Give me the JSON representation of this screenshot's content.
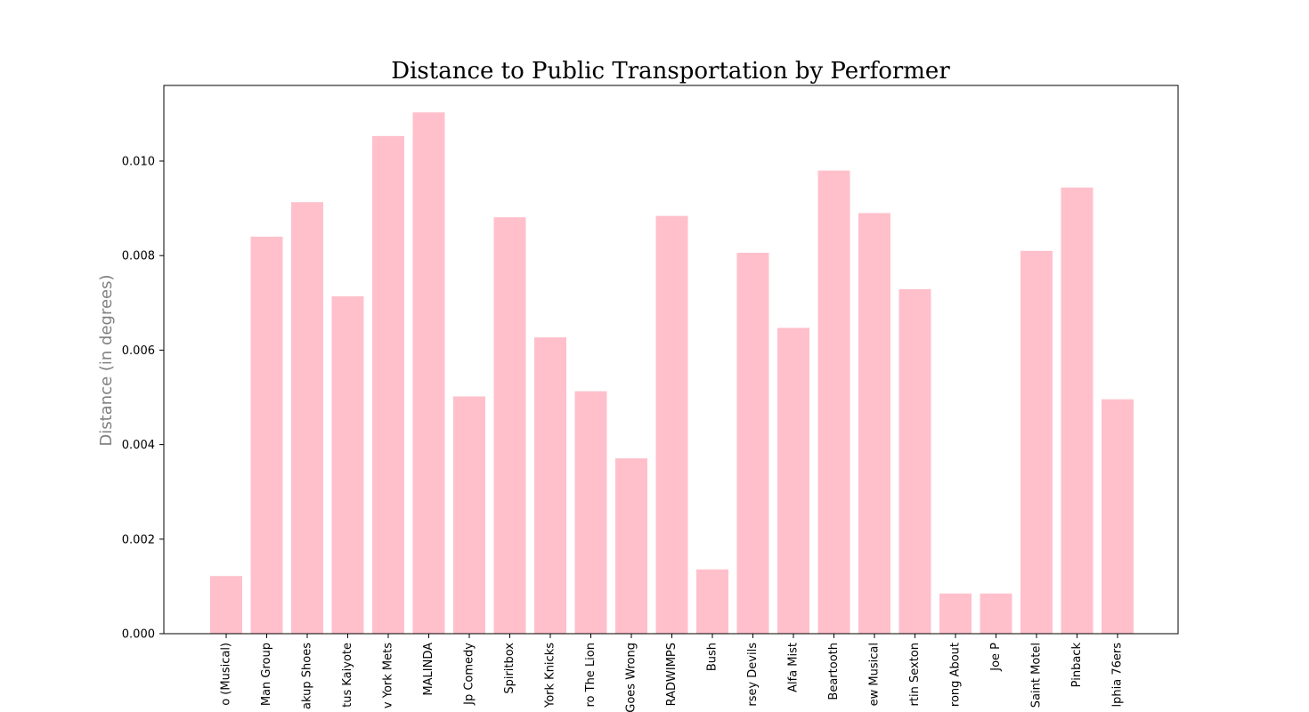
{
  "chart_data": {
    "type": "bar",
    "title": "Distance to Public Transportation by Performer",
    "xlabel": "",
    "ylabel": "Distance (in degrees)",
    "ylim": [
      0,
      0.0116
    ],
    "yticks": [
      "0.000",
      "0.002",
      "0.004",
      "0.006",
      "0.008",
      "0.010"
    ],
    "ytick_values": [
      0,
      0.002,
      0.004,
      0.006,
      0.008,
      0.01
    ],
    "categories": [
      "o (Musical)",
      "Man Group",
      "akup Shoes",
      "tus Kaiyote",
      "v York Mets",
      "MALINDA",
      "Jp Comedy",
      "Spiritbox",
      "York Knicks",
      "ro The Lion",
      "Goes Wrong",
      "RADWIMPS",
      "Bush",
      "rsey Devils",
      "Alfa Mist",
      "Beartooth",
      "ew Musical",
      "rtin Sexton",
      "rong About",
      "Joe P",
      "Saint Motel",
      "Pinback",
      "lphia 76ers"
    ],
    "values": [
      0.00122,
      0.0084,
      0.00913,
      0.00714,
      0.01053,
      0.01103,
      0.00502,
      0.00881,
      0.00627,
      0.00513,
      0.00371,
      0.00884,
      0.00136,
      0.00806,
      0.00647,
      0.0098,
      0.0089,
      0.00729,
      0.00085,
      0.00085,
      0.0081,
      0.00944,
      0.00496
    ],
    "bar_color": "#ffc0cb",
    "ylabel_color": "#808080",
    "grid": false,
    "legend": "none"
  }
}
